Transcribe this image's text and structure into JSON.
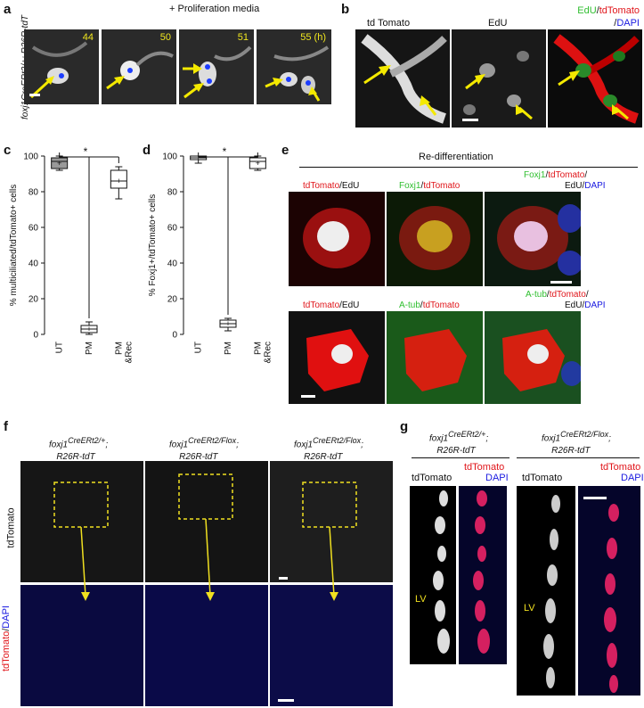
{
  "panel_letters": [
    "a",
    "b",
    "c",
    "d",
    "e",
    "f",
    "g"
  ],
  "a": {
    "genotype": "foxj1CreERt2/+; R26R-tdT",
    "header": "+ Proliferation media",
    "times": [
      "44",
      "50",
      "51",
      "55 (h)"
    ]
  },
  "b": {
    "labels": [
      "td Tomato",
      "EdU",
      "EdU/tdTomato",
      "/DAPI"
    ]
  },
  "c": {
    "ylabel": "% multiciliated/tdTomato+ cells",
    "star": "*"
  },
  "d": {
    "ylabel": "% Foxj1+/tdTomato+ cells",
    "star": "*"
  },
  "chart_data": [
    {
      "type": "box",
      "ylabel": "% multiciliated/tdTomato+ cells",
      "categories": [
        "UT",
        "PM",
        "PM &Rec"
      ],
      "ylim": [
        0,
        100
      ],
      "yticks": [
        0,
        20,
        40,
        60,
        80,
        100
      ],
      "boxes": [
        {
          "category": "UT",
          "min": 92,
          "q1": 93,
          "median": 97,
          "q3": 99,
          "max": 100,
          "mean": 96
        },
        {
          "category": "PM",
          "min": 0,
          "q1": 1,
          "median": 3,
          "q3": 5,
          "max": 7,
          "mean": 3
        },
        {
          "category": "PM &Rec",
          "min": 76,
          "q1": 82,
          "median": 86,
          "q3": 92,
          "max": 94,
          "mean": 86
        }
      ],
      "significance": "*"
    },
    {
      "type": "box",
      "ylabel": "% Foxj1+/tdTomato+ cells",
      "categories": [
        "UT",
        "PM",
        "PM &Rec"
      ],
      "ylim": [
        0,
        100
      ],
      "yticks": [
        0,
        20,
        40,
        60,
        80,
        100
      ],
      "boxes": [
        {
          "category": "UT",
          "min": 96,
          "q1": 98,
          "median": 99,
          "q3": 100,
          "max": 100,
          "mean": 99
        },
        {
          "category": "PM",
          "min": 2,
          "q1": 4,
          "median": 6,
          "q3": 8,
          "max": 9,
          "mean": 6
        },
        {
          "category": "PM &Rec",
          "min": 92,
          "q1": 93,
          "median": 97,
          "q3": 99,
          "max": 100,
          "mean": 96
        }
      ],
      "significance": "*"
    }
  ],
  "e": {
    "header": "Re-differentiation",
    "row1": [
      "tdTomato/EdU",
      "Foxj1/tdTomato",
      "Foxj1/tdTomato/",
      "EdU/DAPI"
    ],
    "row2": [
      "tdTomato/EdU",
      "A-tub/tdTomato",
      "A-tub/tdTomato/",
      "EdU/DAPI"
    ]
  },
  "f": {
    "genotypes": [
      "foxj1CreERt2/+; R26R-tdT",
      "foxj1CreERt2/Flox; R26R-tdT",
      "foxj1CreERt2/Flox; R26R-tdT"
    ],
    "row_labels": [
      "tdTomato",
      "tdTomato/DAPI"
    ]
  },
  "g": {
    "genotypes": [
      "foxj1CreERt2/+; R26R-tdT",
      "foxj1CreERt2/Flox; R26R-tdT"
    ],
    "col_labels": [
      "tdTomato",
      "tdTomato",
      "DAPI"
    ],
    "lv": "LV"
  }
}
